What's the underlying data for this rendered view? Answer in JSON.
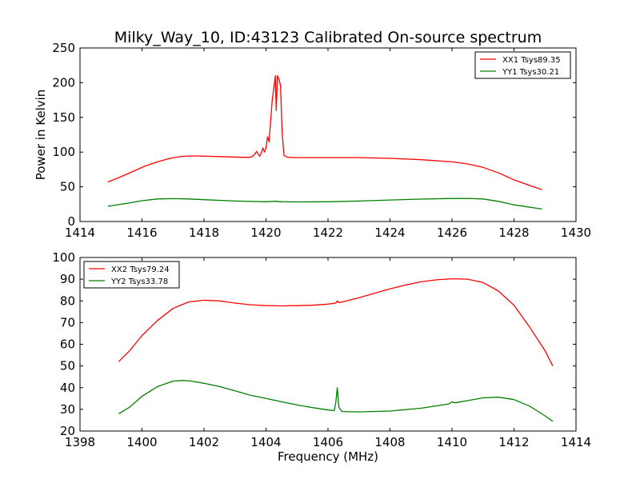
{
  "title": "Milky_Way_10, ID:43123 Calibrated On-source spectrum",
  "chart_data": [
    {
      "type": "line",
      "xlim": [
        1414,
        1430
      ],
      "ylim": [
        0,
        250
      ],
      "xticks": [
        1414,
        1416,
        1418,
        1420,
        1422,
        1424,
        1426,
        1428,
        1430
      ],
      "yticks": [
        0,
        50,
        100,
        150,
        200,
        250
      ],
      "xlabel": "",
      "ylabel": "Power in Kelvin",
      "legend_position": "top-right",
      "series": [
        {
          "name": "XX1 Tsys89.35",
          "color": "#ff0000",
          "points": [
            [
              1414.9,
              57
            ],
            [
              1415.3,
              64
            ],
            [
              1415.7,
              72
            ],
            [
              1416.1,
              80
            ],
            [
              1416.5,
              86
            ],
            [
              1416.9,
              91
            ],
            [
              1417.3,
              94
            ],
            [
              1417.7,
              94.5
            ],
            [
              1418.1,
              94
            ],
            [
              1418.5,
              93.5
            ],
            [
              1418.9,
              93
            ],
            [
              1419.2,
              92.5
            ],
            [
              1419.5,
              92.5
            ],
            [
              1419.6,
              95
            ],
            [
              1419.7,
              101
            ],
            [
              1419.75,
              97
            ],
            [
              1419.8,
              94
            ],
            [
              1419.85,
              99
            ],
            [
              1419.9,
              106
            ],
            [
              1419.95,
              100
            ],
            [
              1420.0,
              106
            ],
            [
              1420.05,
              122
            ],
            [
              1420.1,
              115
            ],
            [
              1420.15,
              145
            ],
            [
              1420.2,
              175
            ],
            [
              1420.25,
              192
            ],
            [
              1420.3,
              210
            ],
            [
              1420.33,
              160
            ],
            [
              1420.37,
              210
            ],
            [
              1420.42,
              205
            ],
            [
              1420.47,
              195
            ],
            [
              1420.52,
              130
            ],
            [
              1420.58,
              95
            ],
            [
              1420.7,
              92.5
            ],
            [
              1421,
              92
            ],
            [
              1422,
              92
            ],
            [
              1423,
              92
            ],
            [
              1424,
              91
            ],
            [
              1425,
              89
            ],
            [
              1426,
              86
            ],
            [
              1426.5,
              83
            ],
            [
              1427,
              78
            ],
            [
              1427.5,
              70
            ],
            [
              1428,
              60
            ],
            [
              1428.5,
              52
            ],
            [
              1428.9,
              46
            ]
          ]
        },
        {
          "name": "YY1 Tsys30.21",
          "color": "#008000",
          "points": [
            [
              1414.9,
              22
            ],
            [
              1415.5,
              26
            ],
            [
              1416,
              30
            ],
            [
              1416.5,
              32.5
            ],
            [
              1417,
              33
            ],
            [
              1417.5,
              32.5
            ],
            [
              1418,
              31.5
            ],
            [
              1419,
              29.5
            ],
            [
              1420,
              28.5
            ],
            [
              1420.3,
              29.2
            ],
            [
              1420.5,
              28.5
            ],
            [
              1421,
              28.2
            ],
            [
              1422,
              28.5
            ],
            [
              1423,
              29.5
            ],
            [
              1424,
              31
            ],
            [
              1425,
              32.3
            ],
            [
              1426,
              33.2
            ],
            [
              1426.5,
              33.3
            ],
            [
              1427,
              32.5
            ],
            [
              1427.5,
              29
            ],
            [
              1428,
              24
            ],
            [
              1428.9,
              18
            ]
          ]
        }
      ]
    },
    {
      "type": "line",
      "xlim": [
        1398,
        1414
      ],
      "ylim": [
        20,
        100
      ],
      "xticks": [
        1398,
        1400,
        1402,
        1404,
        1406,
        1408,
        1410,
        1412,
        1414
      ],
      "yticks": [
        20,
        30,
        40,
        50,
        60,
        70,
        80,
        90,
        100
      ],
      "xlabel": "Frequency (MHz)",
      "ylabel": "",
      "legend_position": "top-left",
      "series": [
        {
          "name": "XX2 Tsys79.24",
          "color": "#ff0000",
          "points": [
            [
              1399.25,
              52
            ],
            [
              1399.6,
              57
            ],
            [
              1400,
              64
            ],
            [
              1400.5,
              71
            ],
            [
              1401,
              76.5
            ],
            [
              1401.5,
              79.5
            ],
            [
              1402,
              80.3
            ],
            [
              1402.5,
              80
            ],
            [
              1403,
              79
            ],
            [
              1403.5,
              78.2
            ],
            [
              1404,
              77.8
            ],
            [
              1404.5,
              77.7
            ],
            [
              1405,
              77.8
            ],
            [
              1405.5,
              78
            ],
            [
              1406,
              78.5
            ],
            [
              1406.25,
              79
            ],
            [
              1406.3,
              80
            ],
            [
              1406.35,
              79.2
            ],
            [
              1406.5,
              79.6
            ],
            [
              1407,
              81.5
            ],
            [
              1407.5,
              83.5
            ],
            [
              1408,
              85.5
            ],
            [
              1408.5,
              87.3
            ],
            [
              1409,
              88.8
            ],
            [
              1409.5,
              89.7
            ],
            [
              1410,
              90.2
            ],
            [
              1410.5,
              90
            ],
            [
              1411,
              88.5
            ],
            [
              1411.5,
              84.5
            ],
            [
              1412,
              78
            ],
            [
              1412.5,
              68
            ],
            [
              1413,
              57
            ],
            [
              1413.25,
              50
            ]
          ]
        },
        {
          "name": "YY2 Tsys33.78",
          "color": "#008000",
          "points": [
            [
              1399.25,
              28
            ],
            [
              1399.6,
              31
            ],
            [
              1400,
              36
            ],
            [
              1400.5,
              40.5
            ],
            [
              1401,
              43
            ],
            [
              1401.3,
              43.3
            ],
            [
              1401.6,
              43
            ],
            [
              1402,
              42
            ],
            [
              1402.5,
              40.5
            ],
            [
              1403,
              38.5
            ],
            [
              1403.5,
              36.5
            ],
            [
              1404,
              35
            ],
            [
              1404.5,
              33.5
            ],
            [
              1405,
              32
            ],
            [
              1405.5,
              30.8
            ],
            [
              1406,
              29.7
            ],
            [
              1406.2,
              29.4
            ],
            [
              1406.25,
              33
            ],
            [
              1406.3,
              40
            ],
            [
              1406.35,
              31
            ],
            [
              1406.45,
              29
            ],
            [
              1407,
              28.8
            ],
            [
              1408,
              29.2
            ],
            [
              1409,
              30.5
            ],
            [
              1409.9,
              32.5
            ],
            [
              1410,
              33.5
            ],
            [
              1410.1,
              33
            ],
            [
              1410.5,
              34
            ],
            [
              1411,
              35.3
            ],
            [
              1411.5,
              35.6
            ],
            [
              1412,
              34.5
            ],
            [
              1412.5,
              31.5
            ],
            [
              1413,
              27
            ],
            [
              1413.25,
              24.5
            ]
          ]
        }
      ]
    }
  ]
}
